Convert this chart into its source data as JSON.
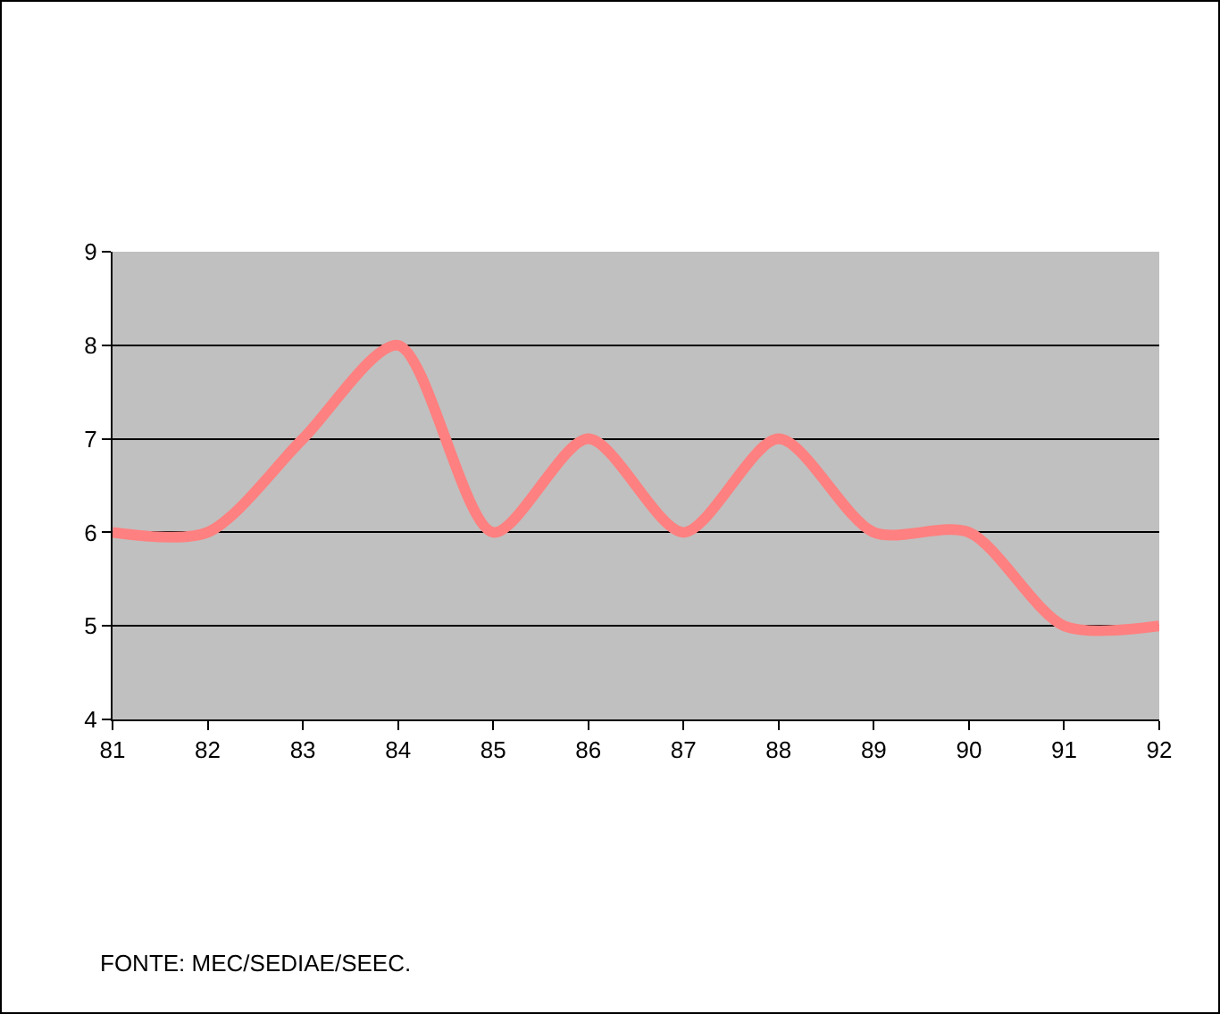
{
  "chart_data": {
    "type": "line",
    "x": [
      81,
      82,
      83,
      84,
      85,
      86,
      87,
      88,
      89,
      90,
      91,
      92
    ],
    "series": [
      {
        "color": "#ff8080",
        "values": [
          6,
          6,
          7,
          8,
          6,
          7,
          6,
          7,
          6,
          6,
          5,
          5
        ]
      }
    ],
    "xlim": [
      81,
      92
    ],
    "xticks": [
      81,
      82,
      83,
      84,
      85,
      86,
      87,
      88,
      89,
      90,
      91,
      92
    ],
    "ylim": [
      4,
      9
    ],
    "yticks": [
      4,
      5,
      6,
      7,
      8,
      9
    ],
    "grid": "y",
    "marker": "none",
    "line_style": "solid",
    "annotations": [
      "FONTE: MEC/SEDIAE/SEEC."
    ]
  }
}
